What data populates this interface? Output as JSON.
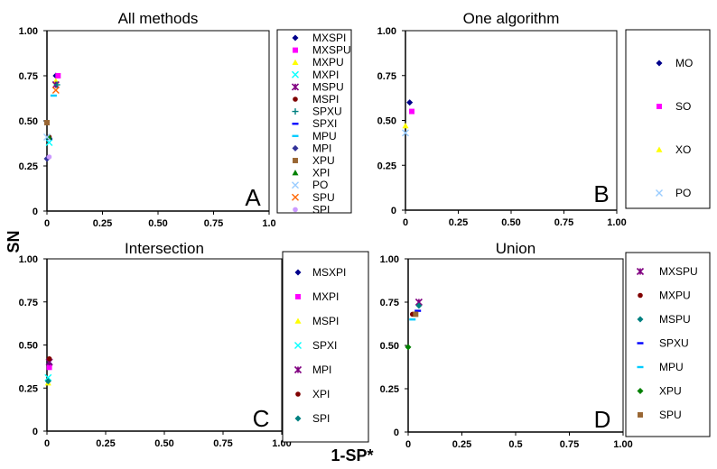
{
  "axis_labels": {
    "y": "SN",
    "x": "1-SP*"
  },
  "chart_data": [
    {
      "type": "scatter",
      "title": "All methods",
      "panel_label": "A",
      "ylabel": "SN",
      "xlabel": "1-SP*",
      "xlim": [
        0,
        1
      ],
      "ylim": [
        0,
        1
      ],
      "x_ticks": [
        "0",
        "0.25",
        "0.50",
        "0.75",
        "1.0"
      ],
      "y_ticks": [
        "0",
        "0.25",
        "0.50",
        "0.75",
        "1.00"
      ],
      "grid": false,
      "legend_position": "right",
      "series": [
        {
          "name": "MXSPI",
          "color": "#00008b",
          "marker": "diamond",
          "points": [
            [
              0.04,
              0.75
            ]
          ]
        },
        {
          "name": "MXSPU",
          "color": "#ff00ff",
          "marker": "square",
          "points": [
            [
              0.05,
              0.75
            ]
          ]
        },
        {
          "name": "MXPU",
          "color": "#ffff00",
          "marker": "triangle",
          "points": [
            [
              0.04,
              0.72
            ]
          ]
        },
        {
          "name": "MXPI",
          "color": "#00ffff",
          "marker": "x",
          "points": [
            [
              0.01,
              0.38
            ]
          ]
        },
        {
          "name": "MSPU",
          "color": "#800080",
          "marker": "star",
          "points": [
            [
              0.04,
              0.7
            ]
          ]
        },
        {
          "name": "MSPI",
          "color": "#800000",
          "marker": "circle",
          "points": [
            [
              0.01,
              0.41
            ]
          ]
        },
        {
          "name": "SPXU",
          "color": "#008080",
          "marker": "plus",
          "points": [
            [
              0.045,
              0.7
            ]
          ]
        },
        {
          "name": "SPXI",
          "color": "#0000ff",
          "marker": "dash",
          "points": [
            [
              0.01,
              0.4
            ]
          ]
        },
        {
          "name": "MPU",
          "color": "#00ccff",
          "marker": "dash",
          "points": [
            [
              0.03,
              0.64
            ]
          ]
        },
        {
          "name": "MPI",
          "color": "#333399",
          "marker": "diamond",
          "points": [
            [
              0.0,
              0.29
            ]
          ]
        },
        {
          "name": "XPU",
          "color": "#996633",
          "marker": "square",
          "points": [
            [
              0.0,
              0.49
            ]
          ]
        },
        {
          "name": "XPI",
          "color": "#008000",
          "marker": "triangle",
          "points": [
            [
              0.01,
              0.41
            ]
          ]
        },
        {
          "name": "PO",
          "color": "#99ccff",
          "marker": "x",
          "points": [
            [
              0.0,
              0.41
            ]
          ]
        },
        {
          "name": "SPU",
          "color": "#ff6600",
          "marker": "x",
          "points": [
            [
              0.04,
              0.67
            ]
          ]
        },
        {
          "name": "SPI",
          "color": "#cc99ff",
          "marker": "circle",
          "points": [
            [
              0.01,
              0.3
            ]
          ]
        }
      ]
    },
    {
      "type": "scatter",
      "title": "One algorithm",
      "panel_label": "B",
      "xlim": [
        0,
        1
      ],
      "ylim": [
        0,
        1
      ],
      "x_ticks": [
        "0",
        "0.25",
        "0.50",
        "0.75",
        "1.00"
      ],
      "y_ticks": [
        "0",
        "0.25",
        "0.50",
        "0.75",
        "1.00"
      ],
      "grid": false,
      "legend_position": "right",
      "series": [
        {
          "name": "MO",
          "color": "#00008b",
          "marker": "diamond",
          "points": [
            [
              0.02,
              0.6
            ]
          ]
        },
        {
          "name": "SO",
          "color": "#ff00ff",
          "marker": "square",
          "points": [
            [
              0.03,
              0.55
            ]
          ]
        },
        {
          "name": "XO",
          "color": "#ffff00",
          "marker": "triangle",
          "points": [
            [
              0.0,
              0.47
            ]
          ]
        },
        {
          "name": "PO",
          "color": "#99ccff",
          "marker": "x",
          "points": [
            [
              0.0,
              0.43
            ]
          ]
        }
      ]
    },
    {
      "type": "scatter",
      "title": "Intersection",
      "panel_label": "C",
      "xlim": [
        0,
        1
      ],
      "ylim": [
        0,
        1
      ],
      "x_ticks": [
        "0",
        "0.25",
        "0.50",
        "0.75",
        "1.00"
      ],
      "y_ticks": [
        "0",
        "0.25",
        "0.50",
        "0.75",
        "1.00"
      ],
      "grid": false,
      "legend_position": "right",
      "series": [
        {
          "name": "MSXPI",
          "color": "#00008b",
          "marker": "diamond",
          "points": [
            [
              0.01,
              0.39
            ]
          ]
        },
        {
          "name": "MXPI",
          "color": "#ff00ff",
          "marker": "square",
          "points": [
            [
              0.01,
              0.37
            ]
          ]
        },
        {
          "name": "MSPI",
          "color": "#ffff00",
          "marker": "triangle",
          "points": [
            [
              0.005,
              0.28
            ]
          ]
        },
        {
          "name": "SPXI",
          "color": "#00ffff",
          "marker": "x",
          "points": [
            [
              0.005,
              0.31
            ]
          ]
        },
        {
          "name": "MPI",
          "color": "#800080",
          "marker": "star",
          "points": [
            [
              0.01,
              0.4
            ]
          ]
        },
        {
          "name": "XPI",
          "color": "#800000",
          "marker": "circle",
          "points": [
            [
              0.01,
              0.42
            ]
          ]
        },
        {
          "name": "SPI",
          "color": "#008080",
          "marker": "diamond",
          "points": [
            [
              0.005,
              0.29
            ]
          ]
        }
      ]
    },
    {
      "type": "scatter",
      "title": "Union",
      "panel_label": "D",
      "xlim": [
        0,
        1
      ],
      "ylim": [
        0,
        1
      ],
      "x_ticks": [
        "0",
        "0.25",
        "0.5",
        "0.75",
        "1.00"
      ],
      "y_ticks": [
        "0",
        "0.25",
        "0.50",
        "0.75",
        "1.00"
      ],
      "grid": false,
      "legend_position": "right",
      "series": [
        {
          "name": "MXSPU",
          "color": "#800080",
          "marker": "star",
          "points": [
            [
              0.05,
              0.75
            ]
          ]
        },
        {
          "name": "MXPU",
          "color": "#800000",
          "marker": "circle",
          "points": [
            [
              0.02,
              0.68
            ]
          ]
        },
        {
          "name": "MSPU",
          "color": "#008080",
          "marker": "diamond",
          "points": [
            [
              0.05,
              0.73
            ]
          ]
        },
        {
          "name": "SPXU",
          "color": "#0000ff",
          "marker": "dash",
          "points": [
            [
              0.045,
              0.7
            ]
          ]
        },
        {
          "name": "MPU",
          "color": "#00ccff",
          "marker": "dash",
          "points": [
            [
              0.02,
              0.65
            ]
          ]
        },
        {
          "name": "XPU",
          "color": "#008000",
          "marker": "diamond",
          "points": [
            [
              0.0,
              0.49
            ]
          ]
        },
        {
          "name": "SPU",
          "color": "#996633",
          "marker": "square",
          "points": [
            [
              0.035,
              0.68
            ]
          ]
        }
      ]
    }
  ]
}
